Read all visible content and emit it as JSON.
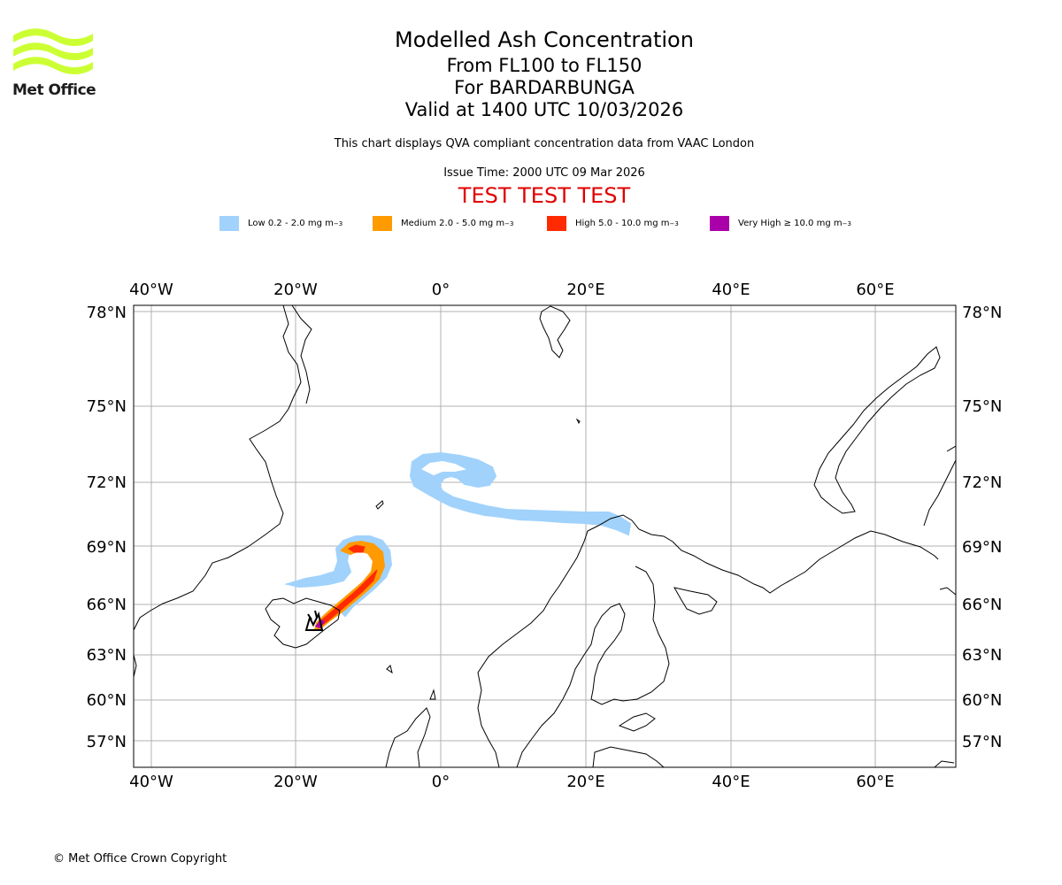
{
  "branding": {
    "logo_text": "Met Office",
    "logo_color": "#ccff33"
  },
  "header": {
    "title": "Modelled Ash Concentration",
    "levels": "From FL100 to FL150",
    "volcano": "For BARDARBUNGA",
    "valid": "Valid at 1400 UTC 10/03/2026",
    "description": "This chart displays QVA compliant concentration data from VAAC London",
    "issue_time": "Issue Time: 2000 UTC 09 Mar 2026",
    "test_banner": "TEST TEST TEST"
  },
  "legend": [
    {
      "label": "Low 0.2 - 2.0 mg m",
      "color": "#a0d2fc"
    },
    {
      "label": "Medium 2.0 - 5.0 mg m",
      "color": "#ff9a00"
    },
    {
      "label": "High 5.0 - 10.0 mg m",
      "color": "#ff2a00"
    },
    {
      "label": "Very High ≥ 10.0 mg m",
      "color": "#aa00aa"
    }
  ],
  "legend_unit_exponent": "−3",
  "map": {
    "projection": "rotated/equirectangular view, Northern Europe and North Atlantic",
    "lon_ticks": [
      "40°W",
      "20°W",
      "0°",
      "20°E",
      "40°E",
      "60°E"
    ],
    "lat_ticks": [
      "78°N",
      "75°N",
      "72°N",
      "69°N",
      "66°N",
      "63°N",
      "60°N",
      "57°N"
    ],
    "gridlines": true,
    "volcano_marker": "volcano-icon"
  },
  "footer": {
    "copyright": "© Met Office Crown Copyright"
  }
}
